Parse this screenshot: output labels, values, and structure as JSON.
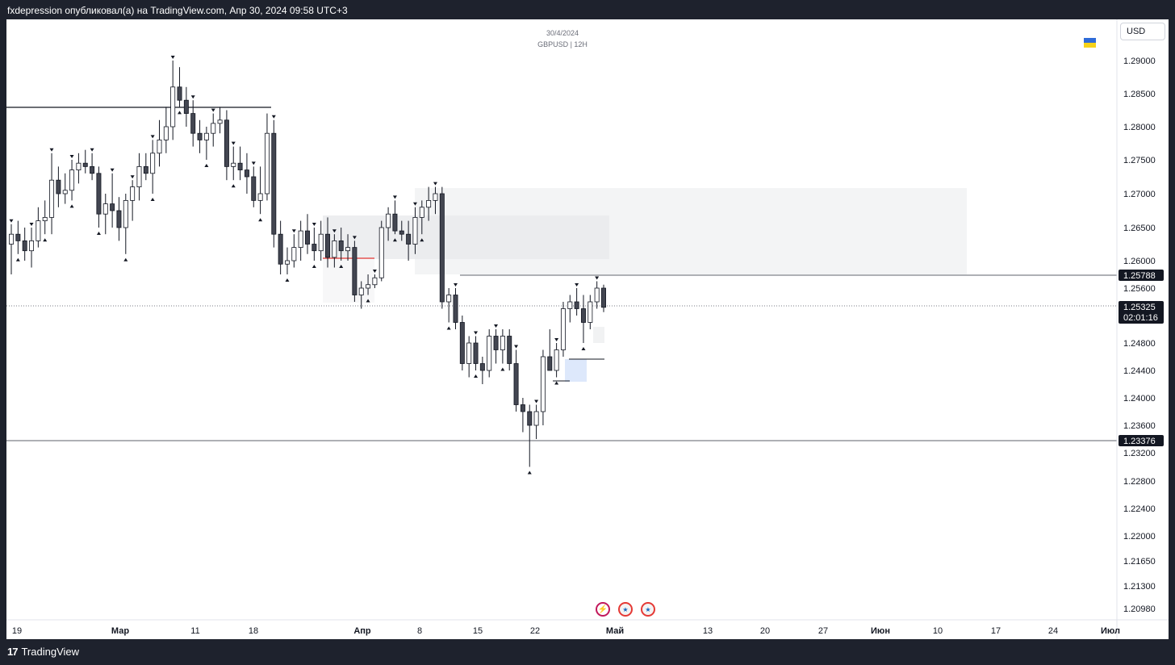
{
  "header": {
    "caption": "fxdepression опубликовал(а) на TradingView.com, Апр 30, 2024 09:58 UTC+3"
  },
  "footer": {
    "brand": "TradingView"
  },
  "chart_header": {
    "date": "30/4/2024",
    "symbol": "GBPUSD | 12H"
  },
  "currency_button": "USD",
  "chart_data": {
    "type": "candlestick",
    "symbol": "GBPUSD",
    "timeframe": "12H",
    "currency": "USD",
    "y_ticks": [
      "1.29000",
      "1.28500",
      "1.28000",
      "1.27500",
      "1.27000",
      "1.26500",
      "1.26000",
      "1.25600",
      "1.24800",
      "1.24400",
      "1.24000",
      "1.23600",
      "1.23200",
      "1.22800",
      "1.22400",
      "1.22000",
      "1.21650",
      "1.21300",
      "1.20980"
    ],
    "x_ticks": [
      "19",
      "Мар",
      "11",
      "18",
      "Апр",
      "8",
      "15",
      "22",
      "Май",
      "13",
      "20",
      "27",
      "Июн",
      "10",
      "17",
      "24",
      "Июл"
    ],
    "price_labels": [
      {
        "value": "1.25788",
        "kind": "level"
      },
      {
        "value": "1.25325",
        "kind": "current",
        "countdown": "02:01:16"
      },
      {
        "value": "1.23376",
        "kind": "level"
      }
    ],
    "candles": [
      [
        1.2625,
        1.2655,
        1.258,
        1.264
      ],
      [
        1.264,
        1.266,
        1.261,
        1.263
      ],
      [
        1.263,
        1.265,
        1.26,
        1.2615
      ],
      [
        1.2615,
        1.265,
        1.259,
        1.263
      ],
      [
        1.263,
        1.268,
        1.262,
        1.266
      ],
      [
        1.266,
        1.269,
        1.264,
        1.2665
      ],
      [
        1.2665,
        1.276,
        1.264,
        1.272
      ],
      [
        1.272,
        1.274,
        1.268,
        1.27
      ],
      [
        1.27,
        1.273,
        1.2685,
        1.2705
      ],
      [
        1.2705,
        1.275,
        1.269,
        1.2735
      ],
      [
        1.2735,
        1.276,
        1.2715,
        1.2745
      ],
      [
        1.2745,
        1.2765,
        1.273,
        1.274
      ],
      [
        1.274,
        1.276,
        1.272,
        1.273
      ],
      [
        1.273,
        1.274,
        1.265,
        1.267
      ],
      [
        1.267,
        1.27,
        1.264,
        1.2685
      ],
      [
        1.2685,
        1.273,
        1.265,
        1.2675
      ],
      [
        1.2675,
        1.2695,
        1.263,
        1.265
      ],
      [
        1.265,
        1.27,
        1.261,
        1.269
      ],
      [
        1.269,
        1.272,
        1.266,
        1.271
      ],
      [
        1.271,
        1.276,
        1.269,
        1.274
      ],
      [
        1.274,
        1.276,
        1.272,
        1.273
      ],
      [
        1.273,
        1.278,
        1.27,
        1.276
      ],
      [
        1.276,
        1.281,
        1.274,
        1.278
      ],
      [
        1.278,
        1.283,
        1.276,
        1.28
      ],
      [
        1.28,
        1.29,
        1.278,
        1.286
      ],
      [
        1.286,
        1.289,
        1.283,
        1.284
      ],
      [
        1.284,
        1.286,
        1.28,
        1.282
      ],
      [
        1.282,
        1.284,
        1.277,
        1.279
      ],
      [
        1.279,
        1.281,
        1.276,
        1.278
      ],
      [
        1.278,
        1.28,
        1.275,
        1.279
      ],
      [
        1.279,
        1.282,
        1.277,
        1.2805
      ],
      [
        1.2805,
        1.283,
        1.279,
        1.281
      ],
      [
        1.281,
        1.2825,
        1.272,
        1.274
      ],
      [
        1.274,
        1.277,
        1.272,
        1.2745
      ],
      [
        1.2745,
        1.277,
        1.272,
        1.2735
      ],
      [
        1.2735,
        1.276,
        1.27,
        1.2725
      ],
      [
        1.2725,
        1.274,
        1.268,
        1.269
      ],
      [
        1.269,
        1.274,
        1.267,
        1.27
      ],
      [
        1.27,
        1.282,
        1.269,
        1.279
      ],
      [
        1.279,
        1.281,
        1.262,
        1.264
      ],
      [
        1.264,
        1.266,
        1.258,
        1.2595
      ],
      [
        1.2595,
        1.262,
        1.258,
        1.26
      ],
      [
        1.26,
        1.264,
        1.259,
        1.262
      ],
      [
        1.262,
        1.266,
        1.26,
        1.2645
      ],
      [
        1.2645,
        1.267,
        1.261,
        1.2625
      ],
      [
        1.2625,
        1.265,
        1.26,
        1.2615
      ],
      [
        1.2615,
        1.266,
        1.26,
        1.264
      ],
      [
        1.264,
        1.2665,
        1.259,
        1.2605
      ],
      [
        1.2605,
        1.264,
        1.259,
        1.263
      ],
      [
        1.263,
        1.265,
        1.26,
        1.2615
      ],
      [
        1.2615,
        1.264,
        1.26,
        1.262
      ],
      [
        1.262,
        1.263,
        1.254,
        1.255
      ],
      [
        1.255,
        1.257,
        1.253,
        1.256
      ],
      [
        1.256,
        1.258,
        1.255,
        1.2565
      ],
      [
        1.2565,
        1.258,
        1.256,
        1.2575
      ],
      [
        1.2575,
        1.266,
        1.257,
        1.265
      ],
      [
        1.265,
        1.268,
        1.263,
        1.267
      ],
      [
        1.267,
        1.269,
        1.264,
        1.2645
      ],
      [
        1.2645,
        1.266,
        1.263,
        1.264
      ],
      [
        1.264,
        1.266,
        1.26,
        1.2625
      ],
      [
        1.2625,
        1.268,
        1.261,
        1.2665
      ],
      [
        1.2665,
        1.269,
        1.264,
        1.268
      ],
      [
        1.268,
        1.271,
        1.266,
        1.269
      ],
      [
        1.269,
        1.271,
        1.267,
        1.27
      ],
      [
        1.27,
        1.271,
        1.253,
        1.254
      ],
      [
        1.254,
        1.256,
        1.251,
        1.255
      ],
      [
        1.255,
        1.256,
        1.25,
        1.251
      ],
      [
        1.251,
        1.252,
        1.244,
        1.245
      ],
      [
        1.245,
        1.249,
        1.243,
        1.248
      ],
      [
        1.248,
        1.249,
        1.244,
        1.245
      ],
      [
        1.245,
        1.246,
        1.242,
        1.244
      ],
      [
        1.244,
        1.25,
        1.243,
        1.249
      ],
      [
        1.249,
        1.25,
        1.245,
        1.247
      ],
      [
        1.247,
        1.25,
        1.245,
        1.249
      ],
      [
        1.249,
        1.25,
        1.244,
        1.245
      ],
      [
        1.245,
        1.247,
        1.238,
        1.239
      ],
      [
        1.239,
        1.24,
        1.235,
        1.238
      ],
      [
        1.238,
        1.239,
        1.23,
        1.236
      ],
      [
        1.236,
        1.239,
        1.234,
        1.238
      ],
      [
        1.238,
        1.247,
        1.236,
        1.246
      ],
      [
        1.246,
        1.25,
        1.244,
        1.244
      ],
      [
        1.244,
        1.248,
        1.243,
        1.247
      ],
      [
        1.247,
        1.254,
        1.246,
        1.253
      ],
      [
        1.253,
        1.255,
        1.251,
        1.254
      ],
      [
        1.254,
        1.256,
        1.252,
        1.253
      ],
      [
        1.253,
        1.255,
        1.248,
        1.251
      ],
      [
        1.251,
        1.255,
        1.25,
        1.254
      ],
      [
        1.254,
        1.257,
        1.253,
        1.256
      ],
      [
        1.256,
        1.2565,
        1.2525,
        1.2532
      ]
    ]
  }
}
